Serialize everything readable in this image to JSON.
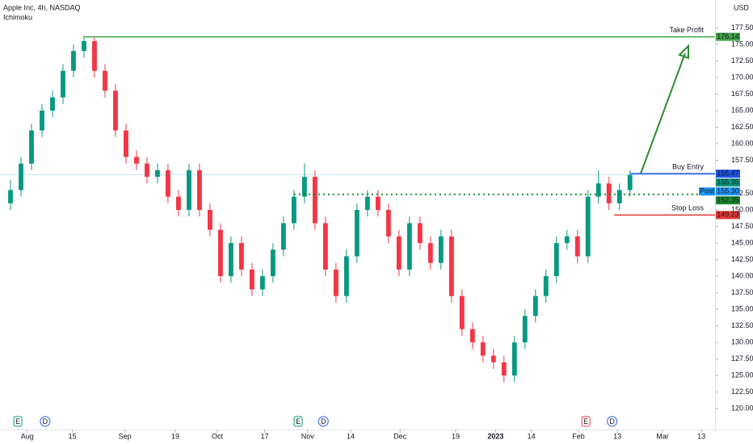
{
  "chart_data": {
    "type": "candlestick",
    "title": "Apple Inc, 4h, NASDAQ",
    "subtitle": "Ichimoku",
    "currency": "USD",
    "up_color": "#089981",
    "down_color": "#f23645",
    "open": [
      151,
      153,
      157,
      162,
      165,
      167,
      171,
      174,
      175.5,
      171,
      168,
      162,
      158,
      157,
      155,
      156,
      152,
      150,
      156,
      150,
      147,
      140,
      145,
      141,
      138,
      140,
      144,
      148,
      152,
      155,
      148,
      141,
      137,
      143,
      150,
      152,
      150,
      146,
      141,
      148,
      145,
      142,
      146,
      137,
      132,
      130,
      128,
      127,
      125,
      130,
      134,
      137,
      140,
      145,
      146,
      143,
      152,
      154,
      151,
      153
    ],
    "high": [
      154.5,
      158,
      163,
      166,
      168,
      172,
      175,
      176.3,
      176,
      172,
      169,
      163,
      159,
      158,
      157,
      157,
      153,
      157,
      157,
      151,
      148,
      146,
      146,
      142,
      141,
      145,
      149,
      153,
      157,
      156,
      149,
      142,
      144,
      151,
      153,
      153,
      151,
      147,
      149,
      149,
      146,
      147,
      147,
      138,
      133,
      131,
      129,
      128,
      131,
      135,
      138,
      141,
      146,
      147,
      147,
      153,
      156,
      155,
      154,
      156
    ],
    "low": [
      150,
      152,
      156,
      161,
      164,
      166,
      170,
      173,
      170,
      167,
      161,
      157,
      156,
      154,
      154,
      151,
      149,
      149,
      149,
      146,
      139,
      139,
      140,
      137,
      137,
      139,
      143,
      147,
      151,
      147,
      140,
      136,
      136,
      142,
      149,
      149,
      145,
      140,
      140,
      144,
      141,
      141,
      136,
      131,
      129,
      127,
      126,
      124,
      124,
      129,
      133,
      136,
      139,
      144,
      142,
      142,
      151,
      150,
      150,
      152
    ],
    "close": [
      153,
      157,
      162,
      165,
      167,
      171,
      174,
      175.5,
      171,
      168,
      162,
      158,
      157,
      155,
      156,
      152,
      150,
      156,
      150,
      147,
      140,
      145,
      141,
      138,
      140,
      144,
      148,
      152,
      155,
      148,
      141,
      137,
      143,
      150,
      152,
      150,
      146,
      141,
      148,
      145,
      142,
      146,
      137,
      132,
      130,
      128,
      127,
      125,
      130,
      134,
      137,
      140,
      145,
      146,
      143,
      152,
      154,
      151,
      153,
      155.3
    ],
    "xlim": [
      -1,
      67.1
    ],
    "xticks": [
      {
        "value": 1.6,
        "label": "Aug"
      },
      {
        "value": 5.9,
        "label": "15"
      },
      {
        "value": 10.9,
        "label": "Sep"
      },
      {
        "value": 15.7,
        "label": "19"
      },
      {
        "value": 19.7,
        "label": "Oct"
      },
      {
        "value": 24.2,
        "label": "17"
      },
      {
        "value": 28.3,
        "label": "Nov"
      },
      {
        "value": 32.4,
        "label": "14"
      },
      {
        "value": 37.1,
        "label": "Dec"
      },
      {
        "value": 42.4,
        "label": "19"
      },
      {
        "value": 46.2,
        "label": "2023"
      },
      {
        "value": 49.6,
        "label": "14"
      },
      {
        "value": 54.1,
        "label": "Feb"
      },
      {
        "value": 57.8,
        "label": "13"
      },
      {
        "value": 62.1,
        "label": "Mar"
      },
      {
        "value": 65.8,
        "label": "13"
      }
    ],
    "ylim": [
      116.85,
      181.7
    ],
    "yticks": [
      {
        "value": 120,
        "label": "120.00"
      },
      {
        "value": 122.5,
        "label": "122.50"
      },
      {
        "value": 125,
        "label": "125.00"
      },
      {
        "value": 127.5,
        "label": "127.50"
      },
      {
        "value": 130,
        "label": "130.00"
      },
      {
        "value": 132.5,
        "label": "132.50"
      },
      {
        "value": 135,
        "label": "135.00"
      },
      {
        "value": 137.5,
        "label": "137.50"
      },
      {
        "value": 140,
        "label": "140.00"
      },
      {
        "value": 142.5,
        "label": "142.50"
      },
      {
        "value": 145,
        "label": "145.00"
      },
      {
        "value": 147.5,
        "label": "147.50"
      },
      {
        "value": 150,
        "label": "150.00"
      },
      {
        "value": 152.5,
        "label": "152.50"
      },
      {
        "value": 157.5,
        "label": "157.50"
      },
      {
        "value": 160,
        "label": "160.00"
      },
      {
        "value": 162.5,
        "label": "162.50"
      },
      {
        "value": 165,
        "label": "165.00"
      },
      {
        "value": 167.5,
        "label": "167.50"
      },
      {
        "value": 170,
        "label": "170.00"
      },
      {
        "value": 172.5,
        "label": "172.50"
      },
      {
        "value": 175,
        "label": "175.00"
      },
      {
        "value": 177.5,
        "label": "177.50"
      }
    ],
    "levels": [
      {
        "name": "Take Profit",
        "value": 176.14,
        "color": "#43a047",
        "from": 7
      },
      {
        "name": "Buy Entry",
        "value": 155.47,
        "color": "#1e53e5",
        "from": 59
      },
      {
        "value": 155.35,
        "color": "#089981"
      },
      {
        "tag": "Post",
        "value": 155.3,
        "value_label": "155.30",
        "color": "#2196f3",
        "faint": true
      },
      {
        "value": 152.35,
        "color": "#1b8a2e",
        "from": 27,
        "dotted": true
      },
      {
        "name": "Stop Loss",
        "value": 149.23,
        "color": "#e53935",
        "from": 57.5
      }
    ],
    "events": [
      {
        "label": "E",
        "x": 0.7,
        "color": "#089981"
      },
      {
        "label": "D",
        "x": 3.3,
        "color": "#2962ff"
      },
      {
        "label": "E",
        "x": 27.4,
        "color": "#089981"
      },
      {
        "label": "D",
        "x": 29.8,
        "color": "#2962ff"
      },
      {
        "label": "E",
        "x": 54.8,
        "color": "#f23645"
      },
      {
        "label": "D",
        "x": 57.3,
        "color": "#2962ff"
      }
    ]
  }
}
